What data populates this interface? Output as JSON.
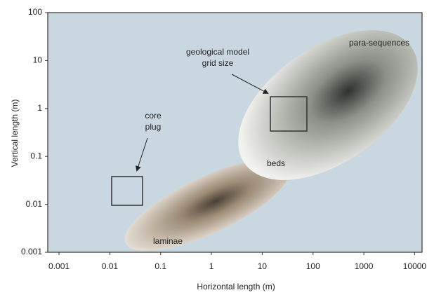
{
  "chart_data": {
    "type": "region-diagram",
    "xlabel": "Horizontal length (m)",
    "ylabel": "Vertical length (m)",
    "xscale": "log",
    "yscale": "log",
    "xlim": [
      0.0006,
      14000
    ],
    "ylim": [
      0.001,
      100
    ],
    "xticks": [
      0.001,
      0.01,
      0.1,
      1,
      10,
      100,
      1000,
      10000
    ],
    "yticks": [
      0.001,
      0.01,
      0.1,
      1,
      10,
      100
    ],
    "regions": [
      "laminae",
      "beds",
      "para-sequences"
    ],
    "annotations": [
      [
        "core",
        "plug"
      ],
      [
        "geological model",
        "grid size"
      ]
    ]
  }
}
